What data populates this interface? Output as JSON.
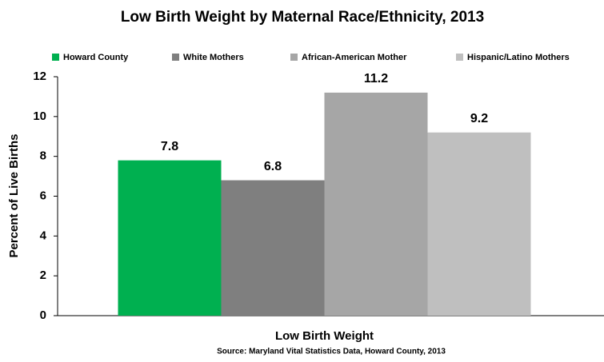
{
  "chart_data": {
    "type": "bar",
    "title": "Low Birth Weight by Maternal Race/Ethnicity, 2013",
    "y_label": "Percent of Live Births",
    "source": "Source: Maryland Vital Statistics Data, Howard County, 2013",
    "categories": [
      "Low Birth Weight"
    ],
    "series": [
      {
        "name": "Howard County",
        "color": "#00b050",
        "values": [
          7.8
        ]
      },
      {
        "name": "White Mothers",
        "color": "#7f7f7f",
        "values": [
          6.8
        ]
      },
      {
        "name": "African-American Mother",
        "color": "#a6a6a6",
        "values": [
          11.2
        ]
      },
      {
        "name": "Hispanic/Latino Mothers",
        "color": "#bfbfbf",
        "values": [
          9.2
        ]
      }
    ],
    "ylim": [
      0,
      12
    ],
    "yticks": [
      0,
      2,
      4,
      6,
      8,
      10,
      12
    ],
    "legend": "top",
    "data_labels": true
  }
}
